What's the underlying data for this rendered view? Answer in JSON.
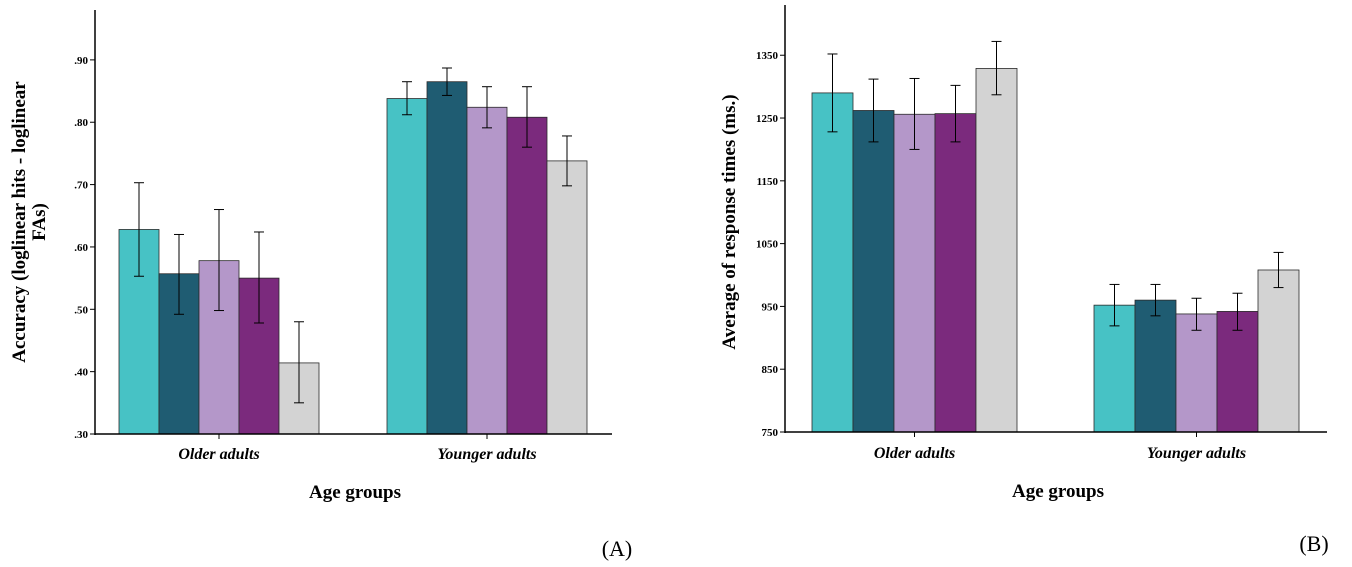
{
  "chart_data": [
    {
      "type": "bar",
      "panel_label": "(A)",
      "xlabel": "Age groups",
      "ylabel_lines": [
        "Accuracy (loglinear hits - loglinear",
        "FAs)"
      ],
      "categories": [
        "Older adults",
        "Younger adults"
      ],
      "ylim": [
        0.3,
        0.98
      ],
      "y_ticks": [
        0.3,
        0.4,
        0.5,
        0.6,
        0.7,
        0.8,
        0.9
      ],
      "y_tick_labels": [
        ".30",
        ".40",
        ".50",
        ".60",
        ".70",
        ".80",
        ".90"
      ],
      "error_bars": true,
      "grid": false,
      "series": [
        {
          "color": "#47c2c5",
          "values": [
            0.628,
            0.838
          ],
          "err_low": [
            0.553,
            0.812
          ],
          "err_high": [
            0.703,
            0.865
          ]
        },
        {
          "color": "#1f5c72",
          "values": [
            0.557,
            0.865
          ],
          "err_low": [
            0.492,
            0.843
          ],
          "err_high": [
            0.62,
            0.887
          ]
        },
        {
          "color": "#b497c9",
          "values": [
            0.578,
            0.824
          ],
          "err_low": [
            0.498,
            0.791
          ],
          "err_high": [
            0.66,
            0.857
          ]
        },
        {
          "color": "#7b2a7d",
          "values": [
            0.55,
            0.808
          ],
          "err_low": [
            0.478,
            0.76
          ],
          "err_high": [
            0.624,
            0.857
          ]
        },
        {
          "color": "#d3d3d3",
          "values": [
            0.414,
            0.738
          ],
          "err_low": [
            0.35,
            0.698
          ],
          "err_high": [
            0.48,
            0.778
          ]
        }
      ]
    },
    {
      "type": "bar",
      "panel_label": "(B)",
      "xlabel": "Age groups",
      "ylabel_lines": [
        "Average of response times (ms.)"
      ],
      "categories": [
        "Older adults",
        "Younger adults"
      ],
      "ylim": [
        750,
        1430
      ],
      "y_ticks": [
        750,
        850,
        950,
        1050,
        1150,
        1250,
        1350
      ],
      "y_tick_labels": [
        "750",
        "850",
        "950",
        "1050",
        "1150",
        "1250",
        "1350"
      ],
      "error_bars": true,
      "grid": false,
      "series": [
        {
          "color": "#47c2c5",
          "values": [
            1290,
            952
          ],
          "err_low": [
            1228,
            919
          ],
          "err_high": [
            1352,
            985
          ]
        },
        {
          "color": "#1f5c72",
          "values": [
            1262,
            960
          ],
          "err_low": [
            1212,
            935
          ],
          "err_high": [
            1312,
            985
          ]
        },
        {
          "color": "#b497c9",
          "values": [
            1256,
            938
          ],
          "err_low": [
            1200,
            912
          ],
          "err_high": [
            1313,
            963
          ]
        },
        {
          "color": "#7b2a7d",
          "values": [
            1257,
            942
          ],
          "err_low": [
            1212,
            912
          ],
          "err_high": [
            1302,
            971
          ]
        },
        {
          "color": "#d3d3d3",
          "values": [
            1329,
            1008
          ],
          "err_low": [
            1287,
            980
          ],
          "err_high": [
            1372,
            1036
          ]
        }
      ]
    }
  ]
}
